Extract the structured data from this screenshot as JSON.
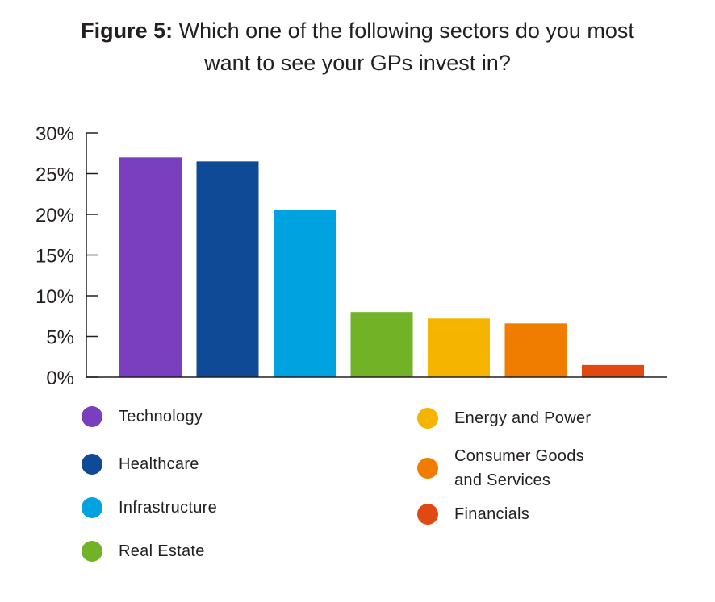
{
  "title": {
    "prefix": "Figure 5:",
    "line1": "Which one of the following sectors do you most",
    "line2": "want to see your GPs invest in?"
  },
  "chart_data": {
    "type": "bar",
    "title": "Figure 5: Which one of the following sectors do you most want to see your GPs invest in?",
    "categories": [
      "Technology",
      "Healthcare",
      "Infrastructure",
      "Real Estate",
      "Energy and Power",
      "Consumer Goods and Services",
      "Financials"
    ],
    "values": [
      27.0,
      26.5,
      20.5,
      8.0,
      7.2,
      6.6,
      1.5
    ],
    "colors": [
      "#7a3fbe",
      "#0e4a96",
      "#00a3e0",
      "#71b227",
      "#f5b400",
      "#f07c00",
      "#e04a12"
    ],
    "ylim": [
      0,
      30
    ],
    "yticks": [
      0,
      5,
      10,
      15,
      20,
      25,
      30
    ],
    "ytick_labels": [
      "0%",
      "5%",
      "10%",
      "15%",
      "20%",
      "25%",
      "30%"
    ],
    "xlabel": "",
    "ylabel": "",
    "grid": false,
    "legend_position": "bottom"
  },
  "legend": [
    {
      "label": "Technology",
      "color": "#7a3fbe"
    },
    {
      "label": "Healthcare",
      "color": "#0e4a96"
    },
    {
      "label": "Infrastructure",
      "color": "#00a3e0"
    },
    {
      "label": "Real Estate",
      "color": "#71b227"
    },
    {
      "label": "Energy and Power",
      "color": "#f5b400"
    },
    {
      "label": "Consumer Goods\nand Services",
      "color": "#f07c00"
    },
    {
      "label": "Financials",
      "color": "#e04a12"
    }
  ]
}
